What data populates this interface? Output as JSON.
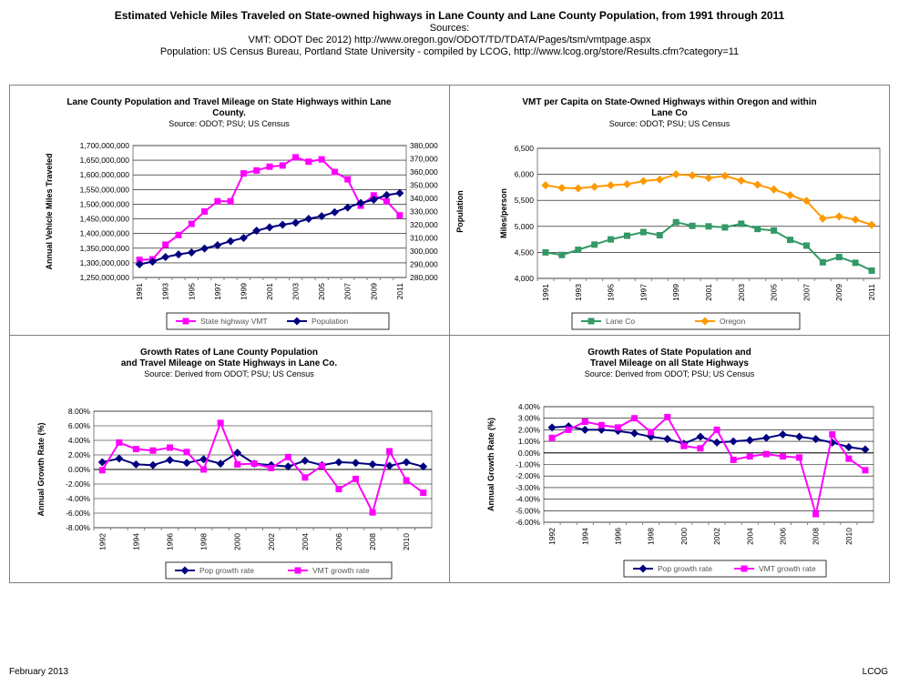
{
  "header": {
    "title": "Estimated Vehicle Miles Traveled on State-owned highways in Lane County and Lane County Population, from 1991 through  2011",
    "sources_label": "Sources:",
    "vmt_source": "VMT:  ODOT Dec 2012)  http://www.oregon.gov/ODOT/TD/TDATA/Pages/tsm/vmtpage.aspx",
    "pop_source": "Population:  US Census Bureau, Portland State University - compiled by LCOG, http://www.lcog.org/store/Results.cfm?category=11"
  },
  "footer": {
    "left": "February 2013",
    "right": "LCOG"
  },
  "colors": {
    "magenta": "#FF00FF",
    "navy": "#000080",
    "green": "#339966",
    "orange": "#FF9900",
    "plot_bg": "#FFFFFF",
    "grid": "#000000"
  },
  "chart_data": [
    {
      "type": "line",
      "title": [
        "Lane County Population and Travel Mileage on State Highways within Lane",
        "County."
      ],
      "subtitle": "Source:  ODOT; PSU; US Census",
      "ylabel": "Annual Vehicle Miles Traveled",
      "y2label": "Population",
      "x": [
        1991,
        1992,
        1993,
        1994,
        1995,
        1996,
        1997,
        1998,
        1999,
        2000,
        2001,
        2002,
        2003,
        2004,
        2005,
        2006,
        2007,
        2008,
        2009,
        2010,
        2011
      ],
      "x_tick_labels": [
        "1991",
        "1993",
        "1995",
        "1997",
        "1999",
        "2001",
        "2003",
        "2005",
        "2007",
        "2009",
        "2011"
      ],
      "ylim": [
        1250000000,
        1700000000
      ],
      "y_ticks": [
        "1,250,000,000",
        "1,300,000,000",
        "1,350,000,000",
        "1,400,000,000",
        "1,450,000,000",
        "1,500,000,000",
        "1,550,000,000",
        "1,600,000,000",
        "1,650,000,000",
        "1,700,000,000"
      ],
      "y2lim": [
        280000,
        380000
      ],
      "y2_ticks": [
        "280,000",
        "290,000",
        "300,000",
        "310,000",
        "320,000",
        "330,000",
        "340,000",
        "350,000",
        "360,000",
        "370,000",
        "380,000"
      ],
      "series": [
        {
          "name": "State highway VMT",
          "axis": "left",
          "color": "#FF00FF",
          "marker": "square",
          "values": [
            1310000000,
            1312000000,
            1362000000,
            1395000000,
            1433000000,
            1475000000,
            1510000000,
            1510000000,
            1605000000,
            1615000000,
            1628000000,
            1632000000,
            1660000000,
            1645000000,
            1653000000,
            1610000000,
            1585000000,
            1495000000,
            1530000000,
            1510000000,
            1462000000
          ]
        },
        {
          "name": "Population",
          "axis": "right",
          "color": "#000080",
          "marker": "diamond",
          "values": [
            290000,
            292000,
            295500,
            297500,
            299000,
            302000,
            304500,
            307500,
            310000,
            315500,
            318000,
            320000,
            321500,
            324500,
            326500,
            329500,
            333000,
            336500,
            339000,
            342500,
            344000
          ]
        }
      ],
      "legend": [
        "State highway VMT",
        "Population"
      ]
    },
    {
      "type": "line",
      "title": [
        "VMT per Capita on State-Owned Highways within Oregon and within",
        "Lane Co"
      ],
      "subtitle": "Source:  ODOT; PSU; US Census",
      "ylabel": "Miles/person",
      "x": [
        1991,
        1992,
        1993,
        1994,
        1995,
        1996,
        1997,
        1998,
        1999,
        2000,
        2001,
        2002,
        2003,
        2004,
        2005,
        2006,
        2007,
        2008,
        2009,
        2010,
        2011
      ],
      "x_tick_labels": [
        "1991",
        "1993",
        "1995",
        "1997",
        "1999",
        "2001",
        "2003",
        "2005",
        "2007",
        "2009",
        "2011"
      ],
      "ylim": [
        4000,
        6500
      ],
      "y_ticks": [
        "4,000",
        "4,500",
        "5,000",
        "5,500",
        "6,000",
        "6,500"
      ],
      "series": [
        {
          "name": "Lane Co",
          "color": "#339966",
          "marker": "square",
          "values": [
            4500,
            4450,
            4550,
            4650,
            4750,
            4820,
            4890,
            4830,
            5080,
            5010,
            5000,
            4980,
            5050,
            4950,
            4920,
            4740,
            4630,
            4310,
            4410,
            4300,
            4150
          ]
        },
        {
          "name": "Oregon",
          "color": "#FF9900",
          "marker": "diamond",
          "values": [
            5790,
            5740,
            5730,
            5760,
            5790,
            5810,
            5870,
            5900,
            6000,
            5980,
            5930,
            5970,
            5880,
            5800,
            5710,
            5600,
            5490,
            5150,
            5190,
            5130,
            5030
          ]
        }
      ],
      "legend": [
        "Lane Co",
        "Oregon"
      ]
    },
    {
      "type": "line",
      "title": [
        "Growth Rates of Lane County Population",
        "and Travel Mileage on State Highways in Lane Co."
      ],
      "subtitle": "Source:  Derived from ODOT; PSU; US Census",
      "ylabel": "Annual Growth Rate (%)",
      "x": [
        1992,
        1993,
        1994,
        1995,
        1996,
        1997,
        1998,
        1999,
        2000,
        2001,
        2002,
        2003,
        2004,
        2005,
        2006,
        2007,
        2008,
        2009,
        2010,
        2011
      ],
      "x_tick_labels": [
        "1992",
        "1994",
        "1996",
        "1998",
        "2000",
        "2002",
        "2004",
        "2006",
        "2008",
        "2010"
      ],
      "ylim": [
        -8,
        8
      ],
      "y_ticks": [
        "-8.00%",
        "-6.00%",
        "-4.00%",
        "-2.00%",
        "0.00%",
        "2.00%",
        "4.00%",
        "6.00%",
        "8.00%"
      ],
      "series": [
        {
          "name": "Pop growth rate",
          "color": "#000080",
          "marker": "diamond",
          "values": [
            1.0,
            1.5,
            0.7,
            0.6,
            1.3,
            0.9,
            1.4,
            0.8,
            2.3,
            0.8,
            0.6,
            0.4,
            1.2,
            0.6,
            1.0,
            0.9,
            0.7,
            0.5,
            1.0,
            0.4
          ]
        },
        {
          "name": "VMT growth rate",
          "color": "#FF00FF",
          "marker": "square",
          "values": [
            -0.1,
            3.7,
            2.8,
            2.6,
            3.0,
            2.4,
            0.0,
            6.4,
            0.7,
            0.8,
            0.2,
            1.7,
            -1.1,
            0.5,
            -2.7,
            -1.3,
            -5.9,
            2.5,
            -1.5,
            -3.2
          ]
        }
      ],
      "legend": [
        "Pop growth rate",
        "VMT growth rate"
      ]
    },
    {
      "type": "line",
      "title": [
        "Growth Rates of State Population and",
        "Travel Mileage on all State Highways"
      ],
      "subtitle": "Source:  Derived from ODOT; PSU; US Census",
      "ylabel": "Annual Growth Rate (%)",
      "x": [
        1992,
        1993,
        1994,
        1995,
        1996,
        1997,
        1998,
        1999,
        2000,
        2001,
        2002,
        2003,
        2004,
        2005,
        2006,
        2007,
        2008,
        2009,
        2010,
        2011
      ],
      "x_tick_labels": [
        "1992",
        "1994",
        "1996",
        "1998",
        "2000",
        "2002",
        "2004",
        "2006",
        "2008",
        "2010"
      ],
      "ylim": [
        -6,
        4
      ],
      "y_ticks": [
        "-6.00%",
        "-5.00%",
        "-4.00%",
        "-3.00%",
        "-2.00%",
        "-1.00%",
        "0.00%",
        "1.00%",
        "2.00%",
        "3.00%",
        "4.00%"
      ],
      "series": [
        {
          "name": "Pop growth rate",
          "color": "#000080",
          "marker": "diamond",
          "values": [
            2.2,
            2.3,
            2.0,
            2.0,
            1.9,
            1.7,
            1.4,
            1.2,
            0.8,
            1.4,
            0.9,
            1.0,
            1.1,
            1.3,
            1.6,
            1.4,
            1.2,
            0.9,
            0.5,
            0.3
          ]
        },
        {
          "name": "VMT growth rate",
          "color": "#FF00FF",
          "marker": "square",
          "values": [
            1.3,
            2.0,
            2.7,
            2.4,
            2.2,
            3.0,
            1.8,
            3.1,
            0.6,
            0.4,
            2.0,
            -0.6,
            -0.3,
            -0.1,
            -0.3,
            -0.4,
            -5.3,
            1.6,
            -0.5,
            -1.5
          ]
        }
      ],
      "legend": [
        "Pop growth rate",
        "VMT growth rate"
      ]
    }
  ]
}
